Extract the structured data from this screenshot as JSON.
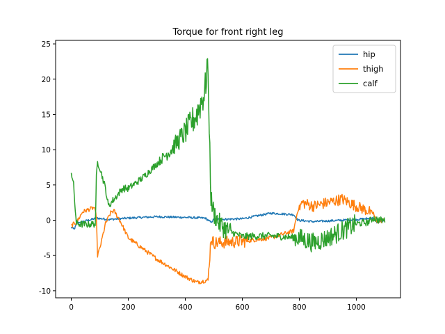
{
  "chart_data": {
    "type": "line",
    "title": "Torque for front right leg",
    "xlabel": "",
    "ylabel": "",
    "xlim": [
      -55,
      1155
    ],
    "ylim": [
      -11,
      25.5
    ],
    "xticks": [
      0,
      200,
      400,
      600,
      800,
      1000
    ],
    "yticks": [
      -10,
      -5,
      0,
      5,
      10,
      15,
      20,
      25
    ],
    "grid": false,
    "legend": "top-right",
    "series": [
      {
        "name": "hip",
        "color": "#1f77b4",
        "noise": 0.15,
        "x": [
          0,
          10,
          20,
          40,
          90,
          130,
          200,
          300,
          400,
          470,
          490,
          500,
          600,
          700,
          780,
          795,
          850,
          1000,
          1060,
          1070,
          1100
        ],
        "y": [
          -1.0,
          -1.3,
          -0.4,
          -0.2,
          0.3,
          0.1,
          0.3,
          0.5,
          0.4,
          0.3,
          -0.3,
          0.1,
          0.2,
          1.0,
          0.8,
          0.0,
          -0.2,
          0.1,
          0.3,
          -0.3,
          0.0
        ]
      },
      {
        "name": "thigh",
        "color": "#ff7f0e",
        "noise": 0.3,
        "x": [
          0,
          20,
          40,
          80,
          88,
          92,
          100,
          120,
          140,
          150,
          170,
          200,
          300,
          400,
          440,
          480,
          490,
          500,
          600,
          700,
          780,
          795,
          810,
          850,
          950,
          1000,
          1060,
          1070,
          1100
        ],
        "y": [
          -0.8,
          -0.2,
          1.2,
          1.8,
          0.5,
          -5.0,
          -4.0,
          -0.5,
          1.2,
          1.3,
          0.0,
          -2.5,
          -5.5,
          -8.0,
          -8.8,
          -8.5,
          -2.5,
          -3.2,
          -3.0,
          -2.5,
          -1.5,
          1.5,
          2.5,
          2.0,
          3.0,
          2.0,
          1.0,
          -0.2,
          0.0
        ]
      },
      {
        "name": "calf",
        "color": "#2ca02c",
        "noise": 0.5,
        "x": [
          0,
          8,
          12,
          18,
          50,
          85,
          88,
          92,
          100,
          120,
          130,
          140,
          160,
          180,
          200,
          250,
          300,
          350,
          400,
          440,
          470,
          478,
          482,
          490,
          500,
          520,
          550,
          600,
          700,
          800,
          850,
          900,
          950,
          1000,
          1040,
          1060,
          1080,
          1100
        ],
        "y": [
          6.8,
          5.0,
          2.5,
          -0.5,
          -0.6,
          -0.5,
          6.0,
          8.3,
          7.5,
          4.5,
          2.0,
          2.5,
          3.5,
          4.5,
          4.5,
          6.0,
          8.0,
          10.0,
          12.5,
          15.0,
          18.5,
          23.0,
          17.0,
          3.0,
          1.0,
          -0.5,
          -1.5,
          -2.3,
          -2.2,
          -2.5,
          -3.2,
          -2.5,
          -1.5,
          -0.5,
          -0.3,
          0.3,
          0.0,
          0.0
        ]
      }
    ]
  }
}
